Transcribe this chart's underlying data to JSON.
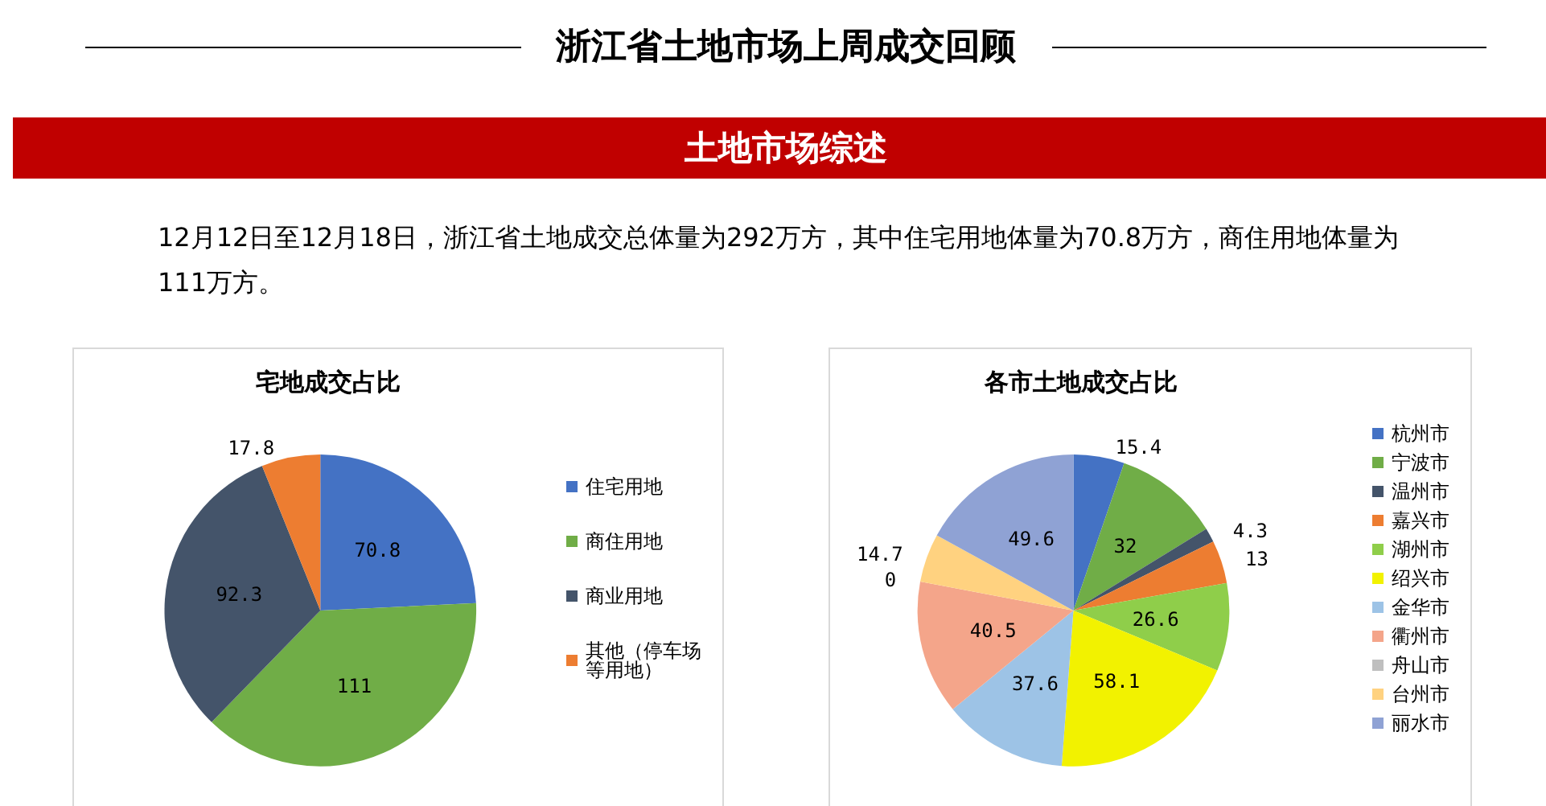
{
  "chart_data": [
    {
      "type": "other",
      "title": "浙江省土地市场上周成交回顾",
      "subtitle": "土地市场综述",
      "annotations": [
        "12月12日至12月18日，浙江省土地成交总体量为292万方，其中住宅用地体量为70.8万方，商住用地体量为111万方。"
      ]
    },
    {
      "type": "pie",
      "title": "宅地成交占比",
      "categories": [
        "住宅用地",
        "商住用地",
        "商业用地",
        "其他（停车场等用地）"
      ],
      "values": [
        70.8,
        111,
        92.3,
        17.8
      ],
      "colors": [
        "#4472c4",
        "#70ad47",
        "#44546a",
        "#ed7d31"
      ],
      "data_labels": true,
      "legend": "right"
    },
    {
      "type": "pie",
      "title": "各市土地成交占比",
      "categories": [
        "杭州市",
        "宁波市",
        "温州市",
        "嘉兴市",
        "湖州市",
        "绍兴市",
        "金华市",
        "衢州市",
        "舟山市",
        "台州市",
        "丽水市"
      ],
      "values": [
        15.4,
        32,
        4.3,
        13,
        26.6,
        58.1,
        37.6,
        40.5,
        0,
        14.7,
        49.6
      ],
      "colors": [
        "#4472c4",
        "#70ad47",
        "#44546a",
        "#ed7d31",
        "#8fce4a",
        "#f2f200",
        "#9dc3e6",
        "#f4a58a",
        "#bfbfbf",
        "#ffd280",
        "#8fa2d4"
      ],
      "value_labels": [
        "15.4",
        "32",
        "4.3",
        "13",
        "26.6",
        "58.1",
        "37.6",
        "40.5",
        "0",
        "14.7",
        "49.6"
      ],
      "legend": "right"
    }
  ]
}
